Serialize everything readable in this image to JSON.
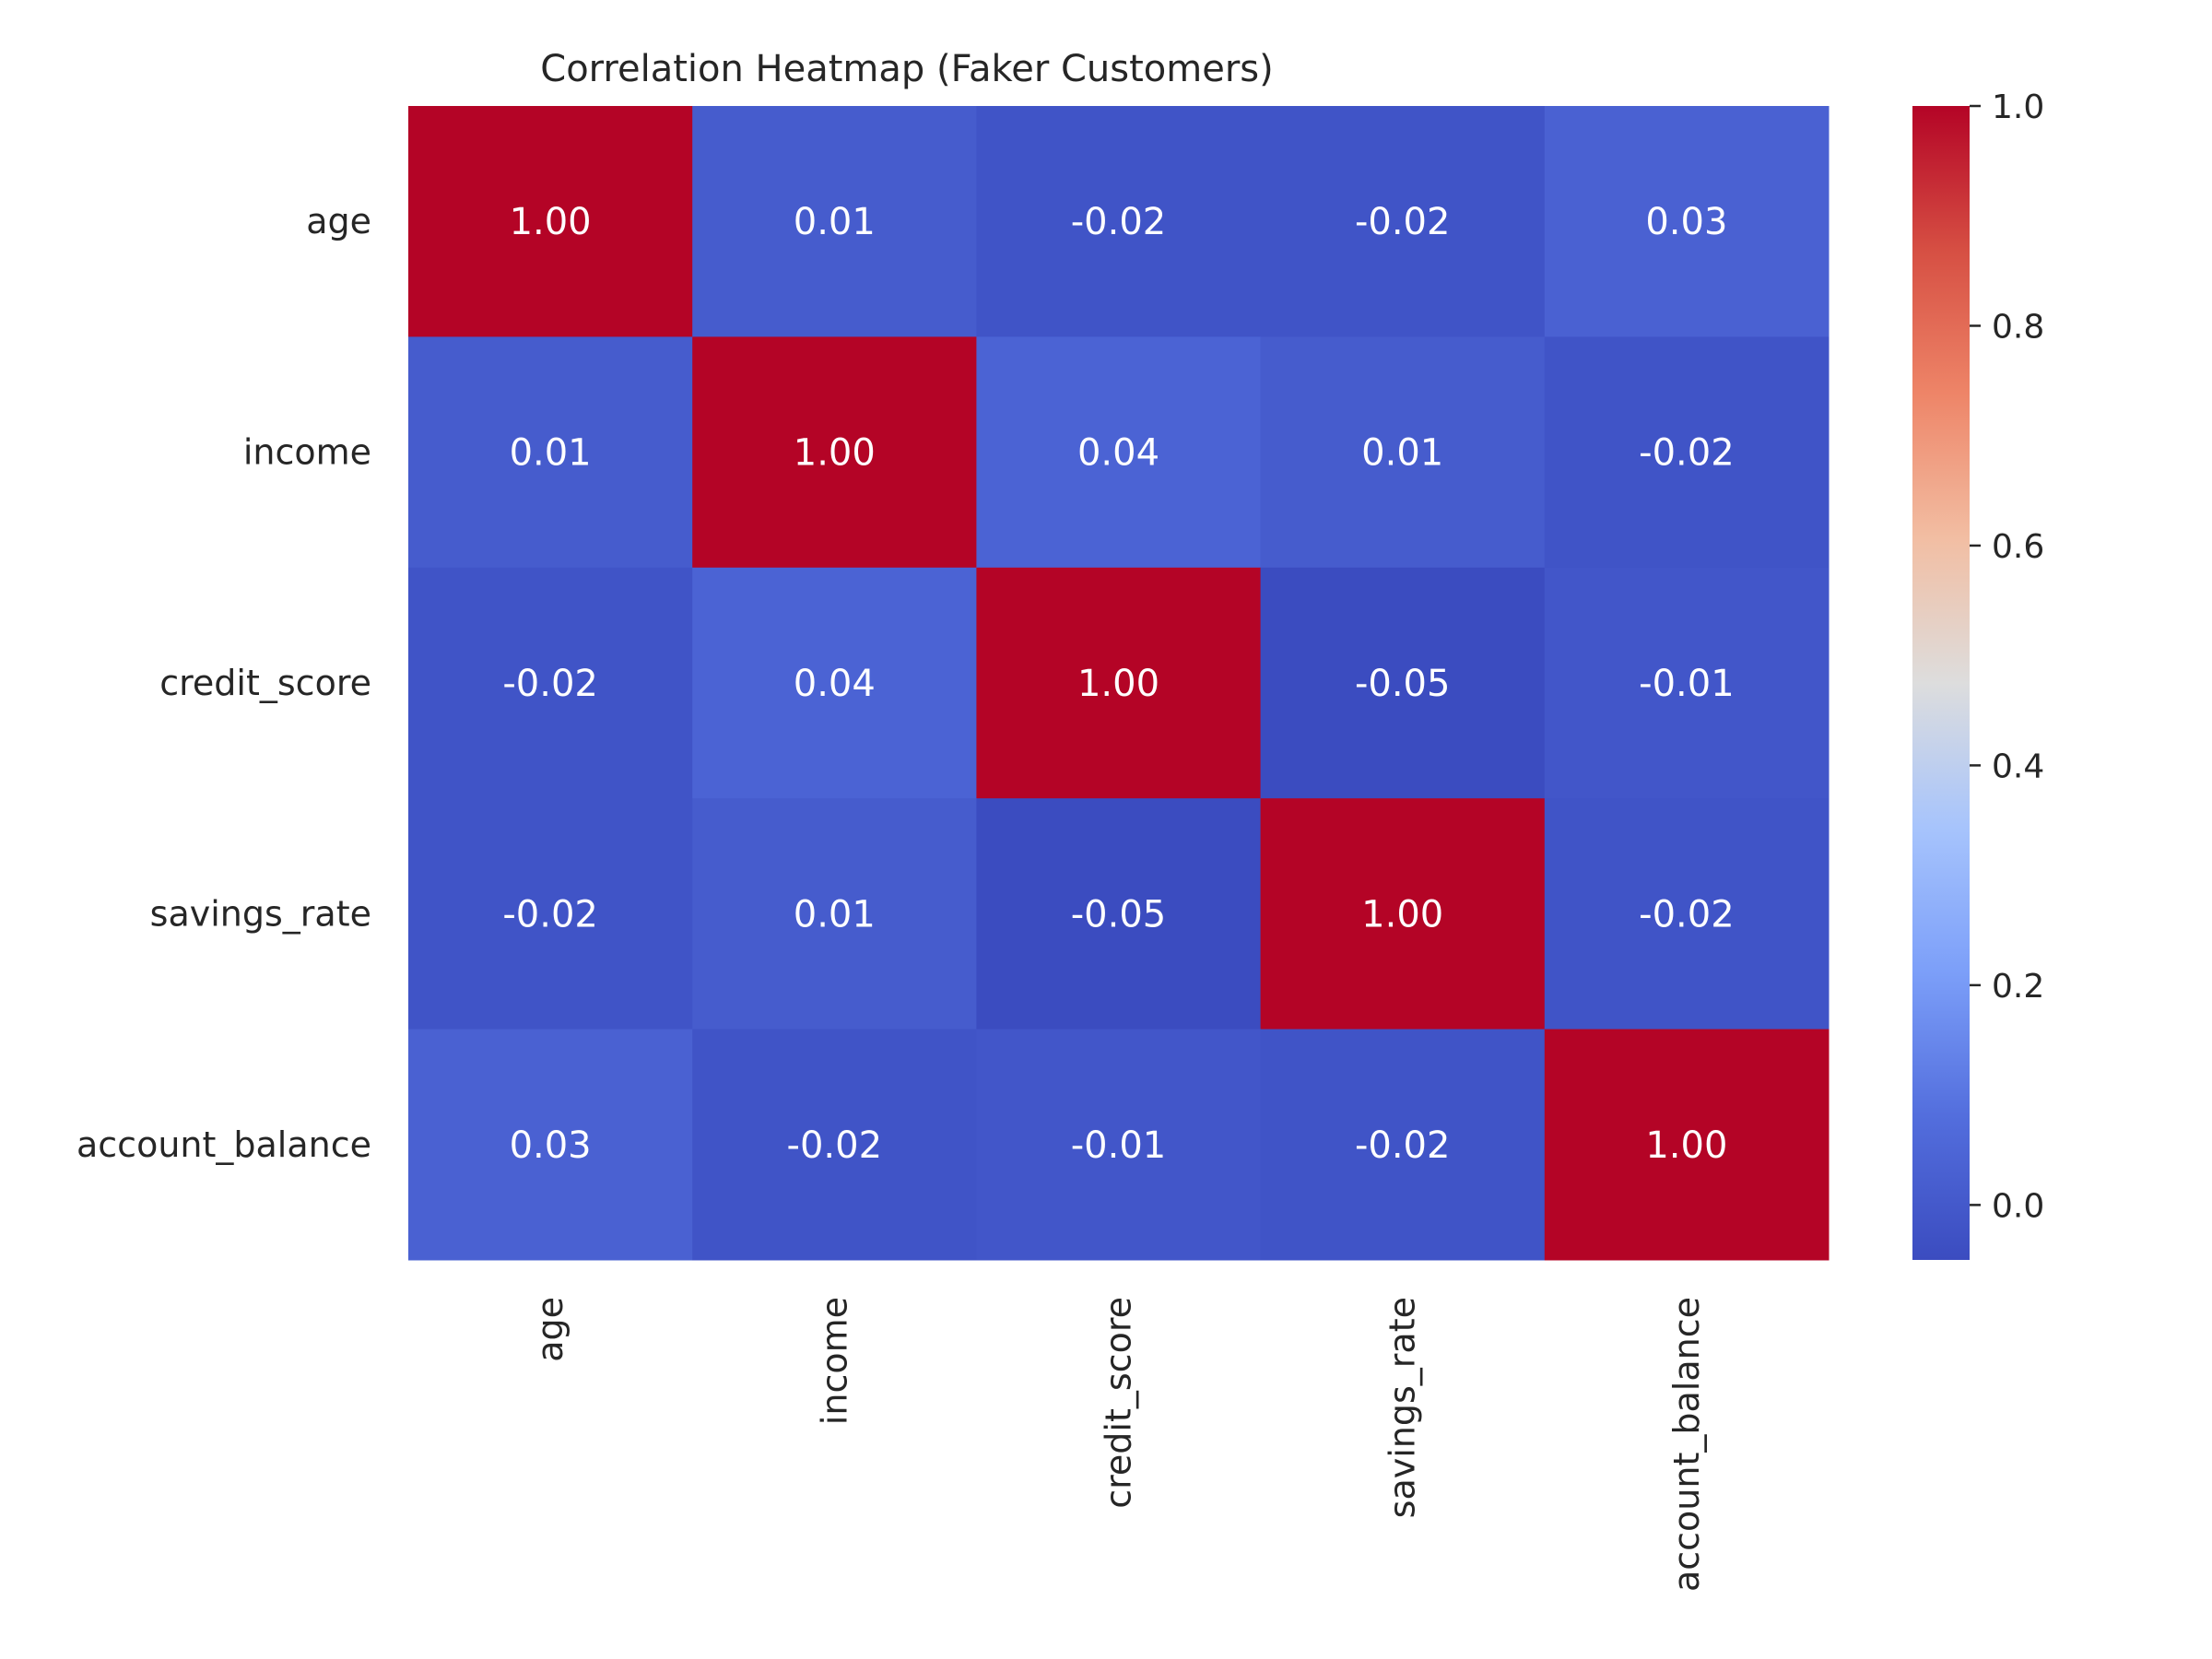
{
  "chart_data": {
    "type": "heatmap",
    "title": "Correlation Heatmap (Faker Customers)",
    "xlabel": "",
    "ylabel": "",
    "x_categories": [
      "age",
      "income",
      "credit_score",
      "savings_rate",
      "account_balance"
    ],
    "y_categories": [
      "age",
      "income",
      "credit_score",
      "savings_rate",
      "account_balance"
    ],
    "values": [
      [
        1.0,
        0.01,
        -0.02,
        -0.02,
        0.03
      ],
      [
        0.01,
        1.0,
        0.04,
        0.01,
        -0.02
      ],
      [
        -0.02,
        0.04,
        1.0,
        -0.05,
        -0.01
      ],
      [
        -0.02,
        0.01,
        -0.05,
        1.0,
        -0.02
      ],
      [
        0.03,
        -0.02,
        -0.01,
        -0.02,
        1.0
      ]
    ],
    "cell_labels": [
      [
        "1.00",
        "0.01",
        "-0.02",
        "-0.02",
        "0.03"
      ],
      [
        "0.01",
        "1.00",
        "0.04",
        "0.01",
        "-0.02"
      ],
      [
        "-0.02",
        "0.04",
        "1.00",
        "-0.05",
        "-0.01"
      ],
      [
        "-0.02",
        "0.01",
        "-0.05",
        "1.00",
        "-0.02"
      ],
      [
        "0.03",
        "-0.02",
        "-0.01",
        "-0.02",
        "1.00"
      ]
    ],
    "colormap": "coolwarm",
    "colorbar": {
      "vmin": -0.05,
      "vmax": 1.0,
      "ticks": [
        0.0,
        0.2,
        0.4,
        0.6,
        0.8,
        1.0
      ],
      "tick_labels": [
        "0.0",
        "0.2",
        "0.4",
        "0.6",
        "0.8",
        "1.0"
      ]
    },
    "grid": false
  }
}
